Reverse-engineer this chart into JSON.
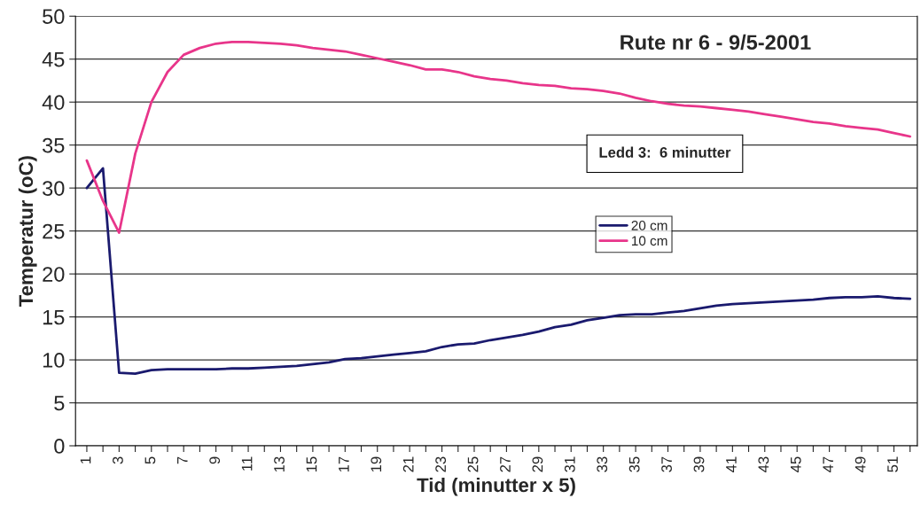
{
  "chart_data": {
    "type": "line",
    "title": "Rute nr 6 - 9/5-2001",
    "xlabel": "Tid (minutter x 5)",
    "ylabel": "Temperatur (oC)",
    "annotations": [
      "Ledd 3:  6 minutter"
    ],
    "categories": [
      "1",
      null,
      "3",
      null,
      "5",
      null,
      "7",
      null,
      "9",
      null,
      "11",
      null,
      "13",
      null,
      "15",
      null,
      "17",
      null,
      "19",
      null,
      "21",
      null,
      "23",
      null,
      "25",
      null,
      "27",
      null,
      "29",
      null,
      "31",
      null,
      "33",
      null,
      "35",
      null,
      "37",
      null,
      "39",
      null,
      "41",
      null,
      "43",
      null,
      "45",
      null,
      "47",
      null,
      "49",
      null,
      "51",
      null
    ],
    "series": [
      {
        "name": "20 cm",
        "color": "#1a1a6e",
        "values": [
          30,
          32.3,
          8.5,
          8.4,
          8.8,
          8.9,
          8.9,
          8.9,
          8.9,
          9,
          9,
          9.1,
          9.2,
          9.3,
          9.5,
          9.7,
          10.1,
          10.2,
          10.4,
          10.6,
          10.8,
          11,
          11.5,
          11.8,
          11.9,
          12.3,
          12.6,
          12.9,
          13.3,
          13.8,
          14.1,
          14.6,
          14.9,
          15.2,
          15.3,
          15.3,
          15.5,
          15.7,
          16,
          16.3,
          16.5,
          16.6,
          16.7,
          16.8,
          16.9,
          17,
          17.2,
          17.3,
          17.3,
          17.4,
          17.2,
          17.1
        ]
      },
      {
        "name": "10 cm",
        "color": "#e8358a",
        "values": [
          33.2,
          28.5,
          24.8,
          34,
          40,
          43.5,
          45.5,
          46.3,
          46.8,
          47,
          47,
          46.9,
          46.8,
          46.6,
          46.3,
          46.1,
          45.9,
          45.5,
          45.1,
          44.7,
          44.3,
          43.8,
          43.8,
          43.5,
          43,
          42.7,
          42.5,
          42.2,
          42,
          41.9,
          41.6,
          41.5,
          41.3,
          41,
          40.5,
          40.1,
          39.8,
          39.6,
          39.5,
          39.3,
          39.1,
          38.9,
          38.6,
          38.3,
          38,
          37.7,
          37.5,
          37.2,
          37,
          36.8,
          36.4,
          36
        ]
      }
    ],
    "ylim": [
      0,
      50
    ],
    "yticks": [
      0,
      5,
      10,
      15,
      20,
      25,
      30,
      35,
      40,
      45,
      50
    ],
    "grid": "y",
    "legend": "right",
    "marker": "none",
    "line_style": "solid"
  }
}
